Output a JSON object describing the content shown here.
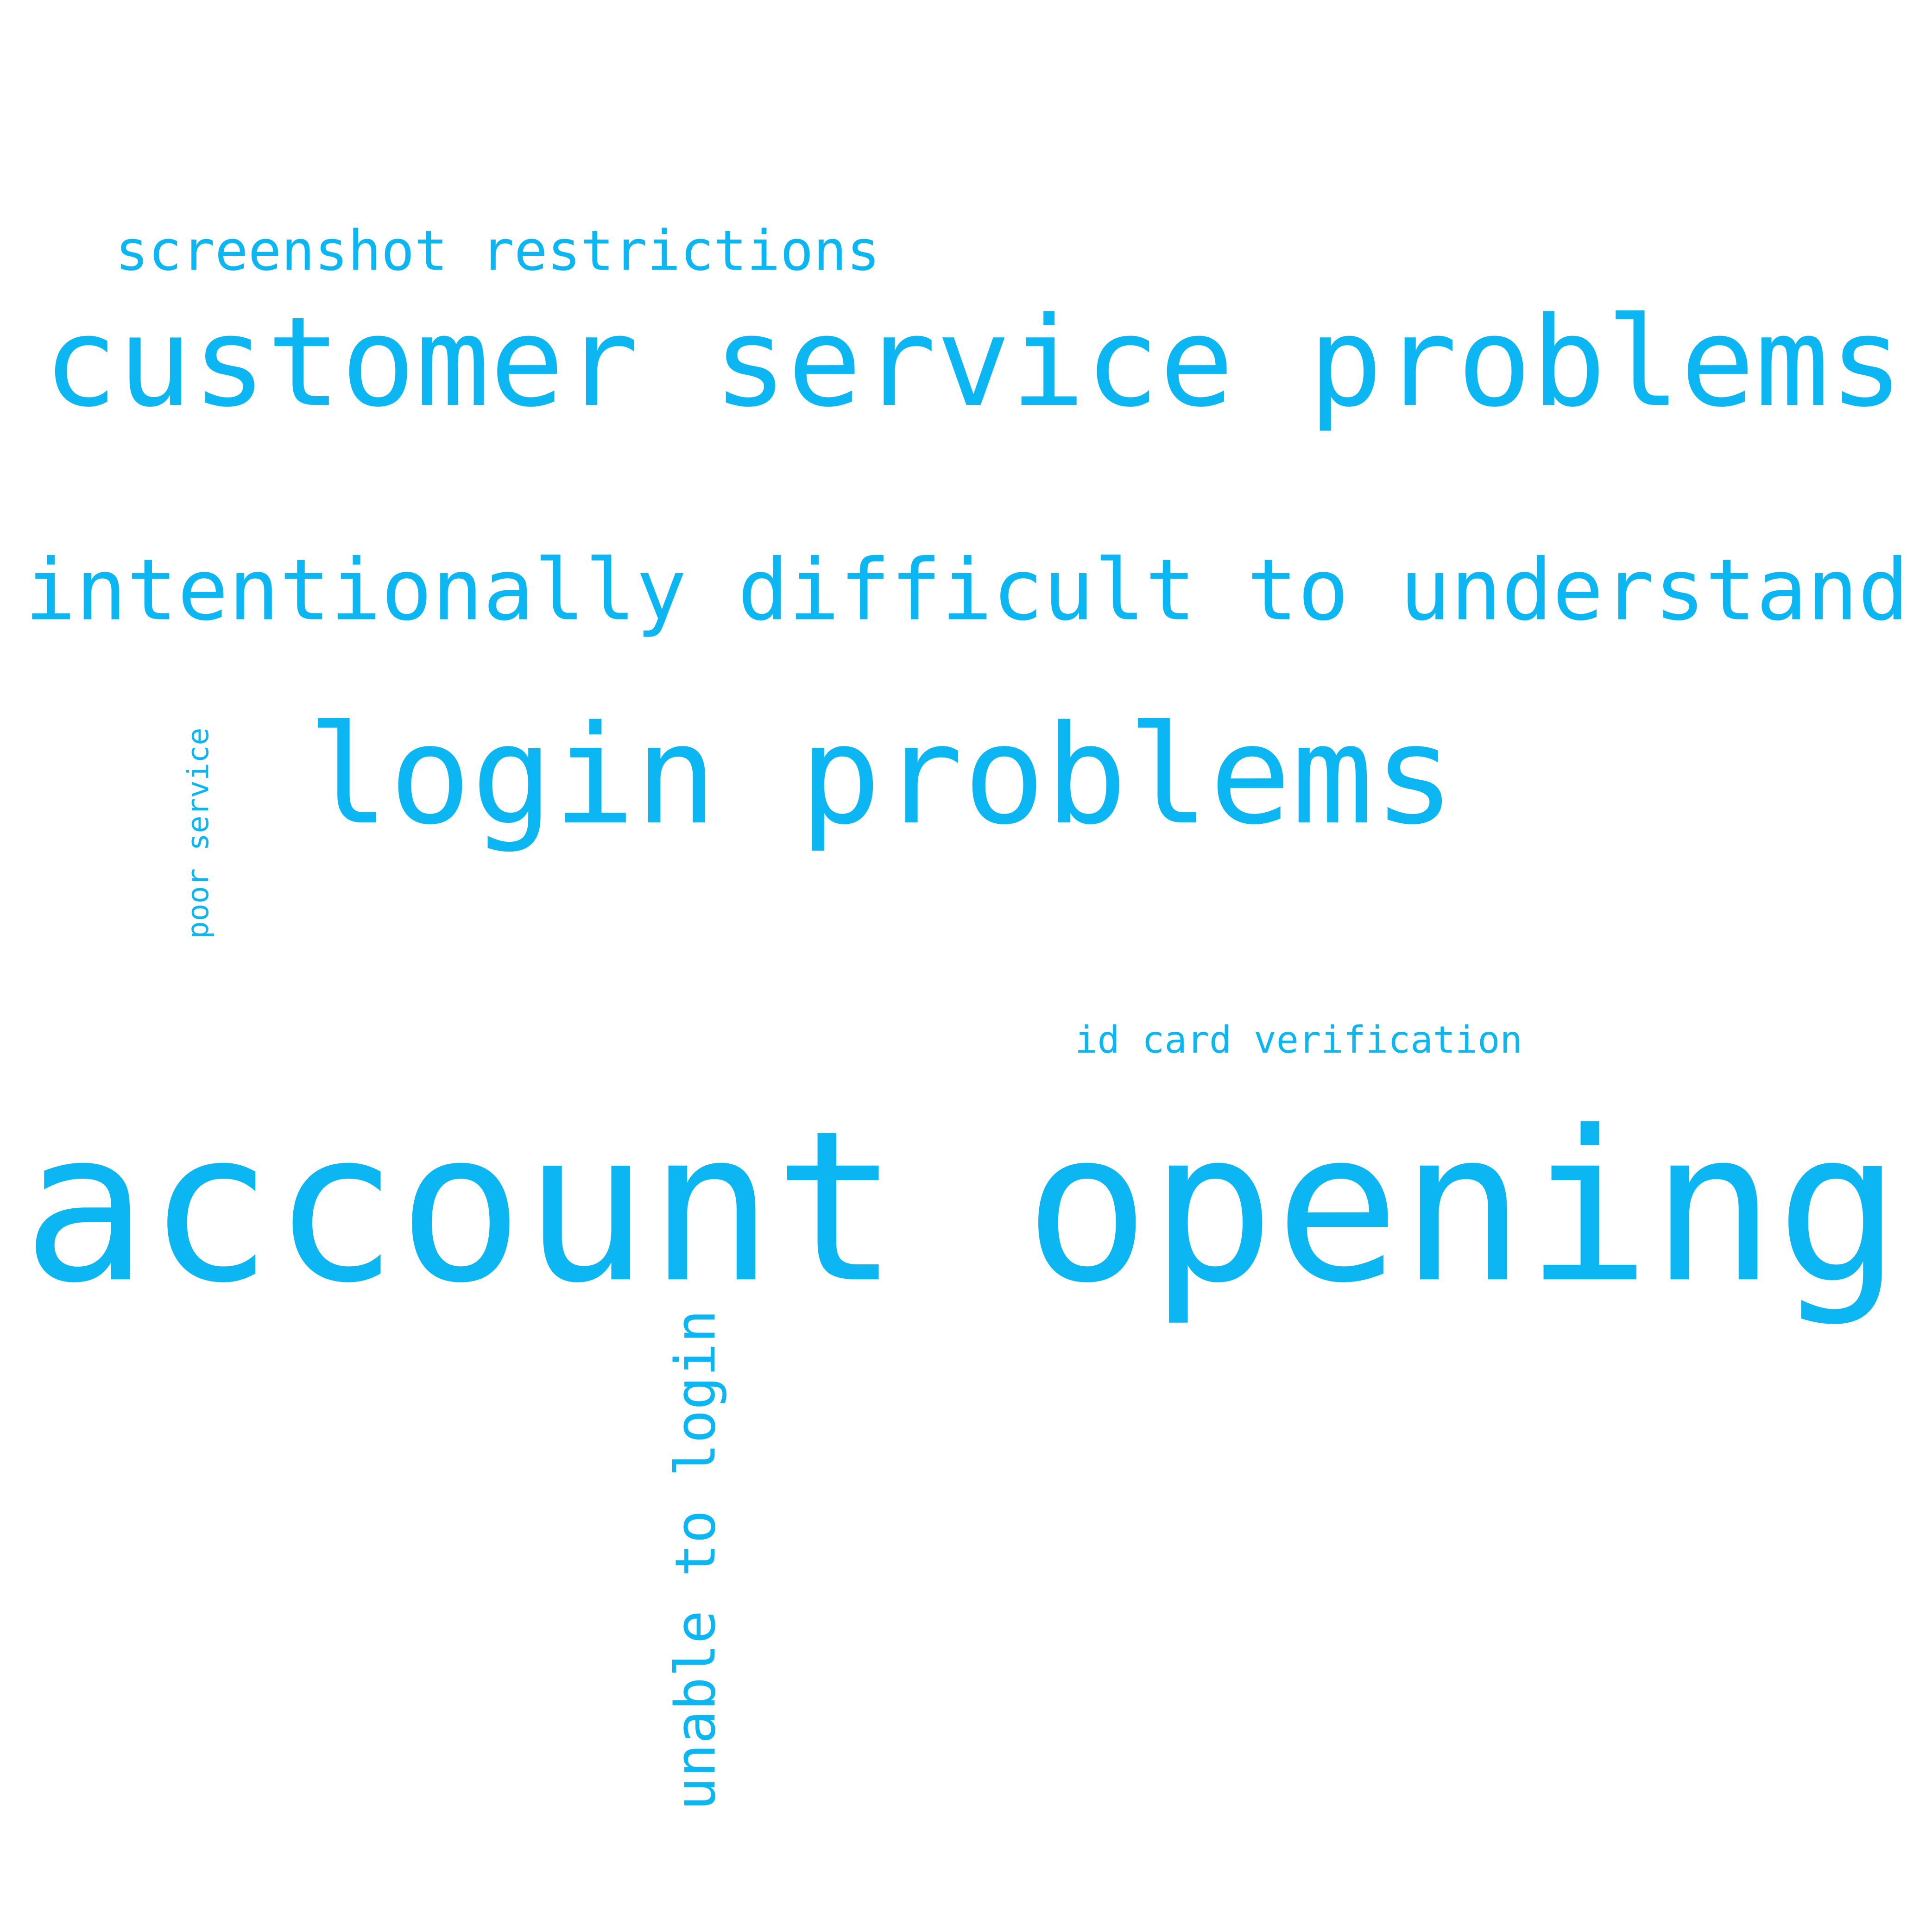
{
  "words": [
    "screenshot restrictions",
    "customer service problems",
    "intentionally difficult to understand",
    "login problems",
    "poor service",
    "id card verification",
    "account opening",
    "unable to login"
  ],
  "color": "#0bb6f2",
  "background": "#ffffff"
}
